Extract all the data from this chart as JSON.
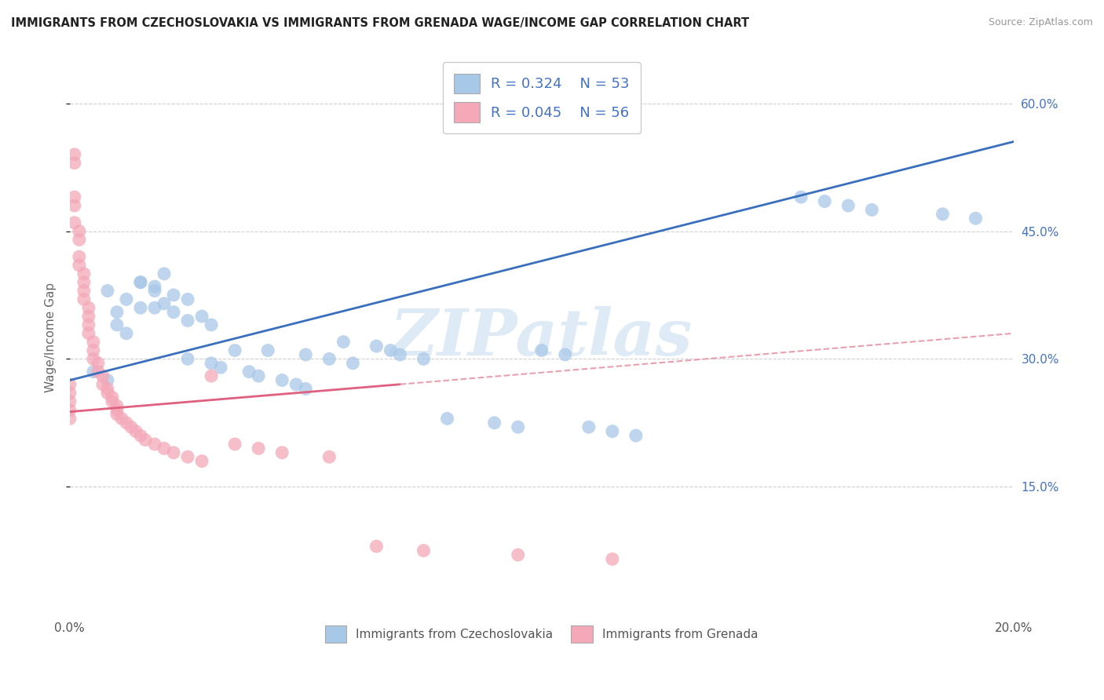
{
  "title": "IMMIGRANTS FROM CZECHOSLOVAKIA VS IMMIGRANTS FROM GRENADA WAGE/INCOME GAP CORRELATION CHART",
  "source": "Source: ZipAtlas.com",
  "ylabel": "Wage/Income Gap",
  "xmin": 0.0,
  "xmax": 0.2,
  "ymin": 0.0,
  "ymax": 0.65,
  "blue_color": "#a8c8e8",
  "pink_color": "#f4a8b8",
  "blue_line_color": "#3a6fbd",
  "pink_line_color": "#e06080",
  "pink_line_dash_color": "#e8a0b0",
  "background_color": "#ffffff",
  "watermark_text": "ZIPatlas",
  "watermark_color": "#c8dff0",
  "legend_items": [
    {
      "color": "#a8c8e8",
      "R": "0.324",
      "N": "53"
    },
    {
      "color": "#f4a8b8",
      "R": "0.045",
      "N": "56"
    }
  ],
  "blue_x": [
    0.005,
    0.008,
    0.01,
    0.012,
    0.015,
    0.01,
    0.008,
    0.012,
    0.015,
    0.018,
    0.02,
    0.015,
    0.018,
    0.022,
    0.025,
    0.02,
    0.018,
    0.022,
    0.028,
    0.025,
    0.03,
    0.035,
    0.025,
    0.03,
    0.032,
    0.038,
    0.04,
    0.045,
    0.048,
    0.05,
    0.042,
    0.05,
    0.055,
    0.06,
    0.058,
    0.065,
    0.068,
    0.07,
    0.075,
    0.08,
    0.09,
    0.095,
    0.1,
    0.105,
    0.11,
    0.115,
    0.12,
    0.155,
    0.16,
    0.165,
    0.17,
    0.185,
    0.192
  ],
  "blue_y": [
    0.285,
    0.275,
    0.34,
    0.33,
    0.36,
    0.355,
    0.38,
    0.37,
    0.39,
    0.385,
    0.4,
    0.39,
    0.38,
    0.375,
    0.37,
    0.365,
    0.36,
    0.355,
    0.35,
    0.345,
    0.34,
    0.31,
    0.3,
    0.295,
    0.29,
    0.285,
    0.28,
    0.275,
    0.27,
    0.265,
    0.31,
    0.305,
    0.3,
    0.295,
    0.32,
    0.315,
    0.31,
    0.305,
    0.3,
    0.23,
    0.225,
    0.22,
    0.31,
    0.305,
    0.22,
    0.215,
    0.21,
    0.49,
    0.485,
    0.48,
    0.475,
    0.47,
    0.465
  ],
  "pink_x": [
    0.0,
    0.0,
    0.0,
    0.0,
    0.0,
    0.001,
    0.001,
    0.001,
    0.001,
    0.001,
    0.002,
    0.002,
    0.002,
    0.002,
    0.003,
    0.003,
    0.003,
    0.003,
    0.004,
    0.004,
    0.004,
    0.004,
    0.005,
    0.005,
    0.005,
    0.006,
    0.006,
    0.007,
    0.007,
    0.008,
    0.008,
    0.009,
    0.009,
    0.01,
    0.01,
    0.01,
    0.011,
    0.012,
    0.013,
    0.014,
    0.015,
    0.016,
    0.018,
    0.02,
    0.022,
    0.025,
    0.028,
    0.03,
    0.035,
    0.04,
    0.045,
    0.055,
    0.065,
    0.075,
    0.095,
    0.115
  ],
  "pink_y": [
    0.27,
    0.26,
    0.25,
    0.24,
    0.23,
    0.54,
    0.53,
    0.49,
    0.48,
    0.46,
    0.45,
    0.44,
    0.42,
    0.41,
    0.4,
    0.39,
    0.38,
    0.37,
    0.36,
    0.35,
    0.34,
    0.33,
    0.32,
    0.31,
    0.3,
    0.295,
    0.285,
    0.28,
    0.27,
    0.265,
    0.26,
    0.255,
    0.25,
    0.245,
    0.24,
    0.235,
    0.23,
    0.225,
    0.22,
    0.215,
    0.21,
    0.205,
    0.2,
    0.195,
    0.19,
    0.185,
    0.18,
    0.28,
    0.2,
    0.195,
    0.19,
    0.185,
    0.08,
    0.075,
    0.07,
    0.065
  ]
}
